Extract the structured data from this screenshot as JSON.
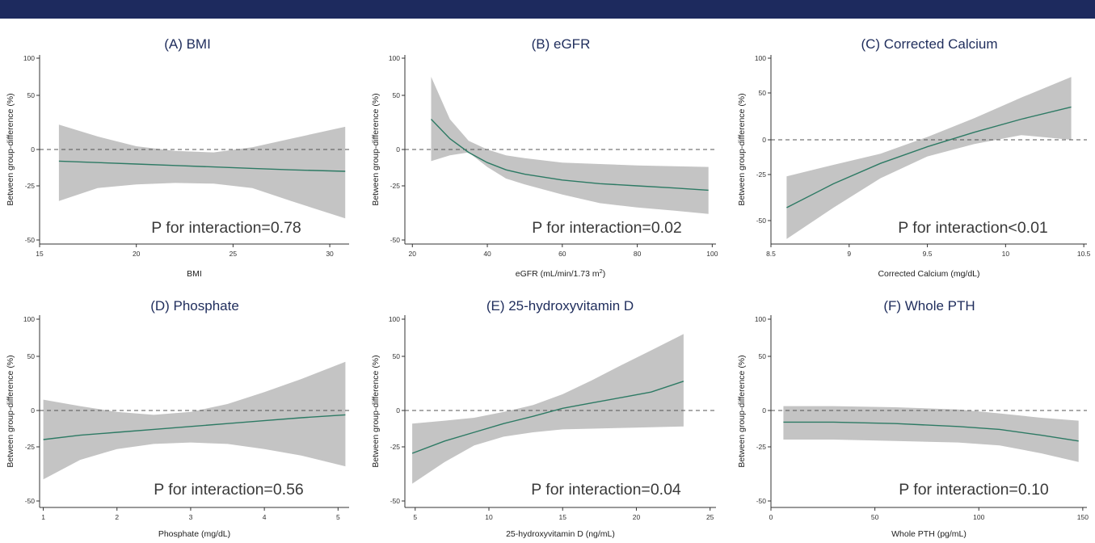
{
  "colors": {
    "top_bar": "#1d2a5e",
    "band": "#c4c4c4",
    "line": "#2d7a64",
    "reference": "#555555",
    "title": "#1f2d5c",
    "axis": "#333333"
  },
  "y_axis_label": "Between group-difference (%)",
  "chart_data": [
    {
      "type": "line",
      "title": "(A) BMI",
      "xlabel": "BMI",
      "ylabel": "Between group-difference (%)",
      "xlim": [
        15,
        31
      ],
      "xticks": [
        "15",
        "20",
        "25",
        "30"
      ],
      "ylim": [
        -52,
        102
      ],
      "yticks": [
        "100",
        "50",
        "0",
        "-25",
        "-50"
      ],
      "annotation": "P for interaction=0.78",
      "x": [
        16,
        18,
        20,
        22,
        24,
        26,
        28,
        30.8
      ],
      "y": [
        -8,
        -9,
        -10,
        -11,
        -12,
        -13,
        -14,
        -15
      ],
      "lower": [
        -32,
        -26,
        -24,
        -23,
        -23.5,
        -26,
        -32,
        -40
      ],
      "upper": [
        23,
        12,
        3,
        -1,
        -2,
        2,
        10,
        21
      ],
      "reference_line": 0
    },
    {
      "type": "line",
      "title": "(B) eGFR",
      "xlabel": "eGFR (mL/min/1.73 m",
      "xlabel_sup": "2",
      "xlabel_close": ")",
      "ylabel": "Between group-difference (%)",
      "xlim": [
        18,
        101
      ],
      "xticks": [
        "20",
        "40",
        "60",
        "80",
        "100"
      ],
      "ylim": [
        -52,
        102
      ],
      "yticks": [
        "100",
        "50",
        "0",
        "-25",
        "-50"
      ],
      "annotation": "P for interaction=0.02",
      "x": [
        25,
        30,
        35,
        40,
        45,
        50,
        60,
        70,
        80,
        90,
        99
      ],
      "y": [
        28,
        10,
        -2,
        -9,
        -14,
        -17,
        -21,
        -23.5,
        -25,
        -26,
        -27
      ],
      "lower": [
        -8,
        -4,
        -2,
        -12,
        -20,
        -24,
        -29,
        -33,
        -35,
        -36.5,
        -38
      ],
      "upper": [
        75,
        28,
        8,
        0,
        -4,
        -6,
        -9,
        -10,
        -11,
        -11.5,
        -12
      ],
      "reference_line": 0
    },
    {
      "type": "line",
      "title": "(C) Corrected Calcium",
      "xlabel": "Corrected Calcium (mg/dL)",
      "ylabel": "Between group-difference (%)",
      "xlim": [
        8.5,
        10.52
      ],
      "xticks": [
        "8.5",
        "9",
        "9.5",
        "10",
        "10.5"
      ],
      "ylim": [
        -60,
        102
      ],
      "yticks": [
        "100",
        "50",
        "0",
        "-25",
        "-50"
      ],
      "annotation": "P for interaction<0.01",
      "x": [
        8.6,
        8.9,
        9.2,
        9.5,
        9.8,
        10.1,
        10.42
      ],
      "y": [
        -43,
        -30,
        -17,
        -5,
        8,
        22,
        35
      ],
      "lower": [
        -60,
        -43,
        -27,
        -12,
        -3,
        5,
        0
      ],
      "upper": [
        -26,
        -18,
        -10,
        3,
        23,
        45,
        73
      ],
      "reference_line": 0
    },
    {
      "type": "line",
      "title": "(D) Phosphate",
      "xlabel": "Phosphate (mg/dL)",
      "ylabel": "Between group-difference (%)",
      "xlim": [
        0.95,
        5.15
      ],
      "xticks": [
        "1",
        "2",
        "3",
        "4",
        "5"
      ],
      "ylim": [
        -52,
        102
      ],
      "yticks": [
        "100",
        "50",
        "0",
        "-25",
        "-50"
      ],
      "annotation": "P for interaction=0.56",
      "x": [
        1,
        1.5,
        2,
        2.5,
        3,
        3.5,
        4,
        4.5,
        5.1
      ],
      "y": [
        -20,
        -17,
        -15,
        -13,
        -11,
        -9,
        -7,
        -5,
        -3
      ],
      "lower": [
        -40,
        -31,
        -26,
        -23,
        -22,
        -23,
        -26,
        -29,
        -34
      ],
      "upper": [
        10,
        4,
        -1,
        -3,
        -1,
        6,
        17,
        29,
        45
      ],
      "reference_line": 0
    },
    {
      "type": "line",
      "title": "(E) 25-hydroxyvitamin D",
      "xlabel": "25-hydroxyvitamin D (ng/mL)",
      "ylabel": "Between group-difference (%)",
      "xlim": [
        4.3,
        25.4
      ],
      "xticks": [
        "5",
        "10",
        "15",
        "20",
        "25"
      ],
      "ylim": [
        -52,
        102
      ],
      "yticks": [
        "100",
        "50",
        "0",
        "-25",
        "-50"
      ],
      "annotation": "P for interaction=0.04",
      "x": [
        4.8,
        7,
        9,
        11,
        13,
        15,
        17,
        19,
        21,
        23.2
      ],
      "y": [
        -28,
        -21,
        -15,
        -9,
        -4,
        2,
        7,
        12,
        17,
        27
      ],
      "lower": [
        -42,
        -32,
        -24,
        -18,
        -15,
        -13,
        -12.5,
        -12,
        -11.5,
        -11
      ],
      "upper": [
        -9,
        -7,
        -5,
        -1,
        5,
        15,
        28,
        42,
        58,
        80
      ],
      "reference_line": 0
    },
    {
      "type": "line",
      "title": "(F) Whole PTH",
      "xlabel": "Whole PTH (pg/mL)",
      "ylabel": "Between group-difference (%)",
      "xlim": [
        0,
        152
      ],
      "xticks": [
        "0",
        "50",
        "100",
        "150"
      ],
      "ylim": [
        -52,
        102
      ],
      "yticks": [
        "100",
        "50",
        "0",
        "-25",
        "-50"
      ],
      "annotation": "P for interaction=0.10",
      "x": [
        6,
        30,
        60,
        90,
        110,
        130,
        148
      ],
      "y": [
        -8,
        -8,
        -9,
        -11,
        -13,
        -17,
        -21
      ],
      "lower": [
        -20,
        -20,
        -21,
        -22,
        -24,
        -28,
        -32
      ],
      "upper": [
        4,
        4,
        3,
        1,
        -2,
        -5,
        -7
      ],
      "reference_line": 0
    }
  ]
}
